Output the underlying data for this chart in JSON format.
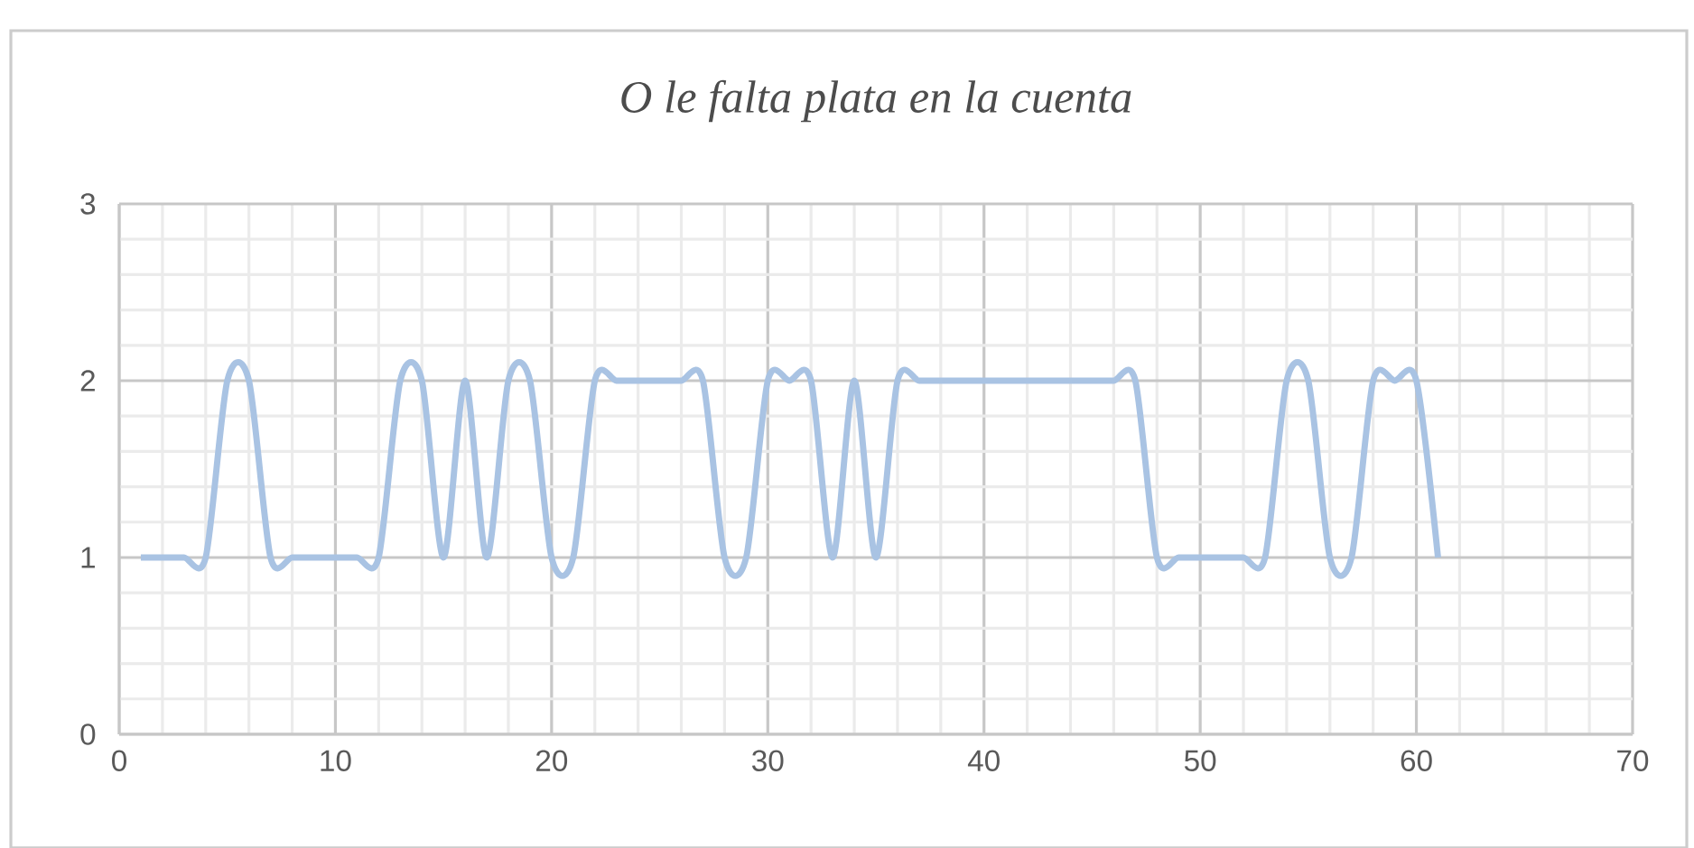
{
  "chart_data": {
    "type": "line",
    "title": "O le falta plata en la cuenta",
    "x": [
      1,
      2,
      3,
      4,
      5,
      6,
      7,
      8,
      9,
      10,
      11,
      12,
      13,
      14,
      15,
      16,
      17,
      18,
      19,
      20,
      21,
      22,
      23,
      24,
      25,
      26,
      27,
      28,
      29,
      30,
      31,
      32,
      33,
      34,
      35,
      36,
      37,
      38,
      39,
      40,
      41,
      42,
      43,
      44,
      45,
      46,
      47,
      48,
      49,
      50,
      51,
      52,
      53,
      54,
      55,
      56,
      57,
      58,
      59,
      60,
      61
    ],
    "values": [
      1,
      1,
      1,
      1,
      2,
      2,
      1,
      1,
      1,
      1,
      1,
      1,
      2,
      2,
      1,
      2,
      1,
      2,
      2,
      1,
      1,
      2,
      2,
      2,
      2,
      2,
      2,
      1,
      1,
      2,
      2,
      2,
      1,
      2,
      1,
      2,
      2,
      2,
      2,
      2,
      2,
      2,
      2,
      2,
      2,
      2,
      2,
      1,
      1,
      1,
      1,
      1,
      1,
      2,
      2,
      1,
      1,
      2,
      2,
      2,
      1
    ],
    "color": "#a9c3e3",
    "xlim": [
      0,
      70
    ],
    "xticks": [
      0,
      10,
      20,
      30,
      40,
      50,
      60,
      70
    ],
    "ylim": [
      0,
      3
    ],
    "yticks": [
      0,
      1,
      2,
      3
    ],
    "grid": true,
    "marker": "none",
    "line_style": "solid"
  }
}
